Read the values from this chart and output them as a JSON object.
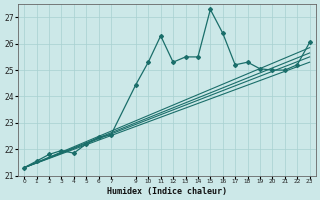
{
  "title": "",
  "xlabel": "Humidex (Indice chaleur)",
  "bg_color": "#cce8e8",
  "line_color": "#1a6e6a",
  "grid_color": "#a8d0d0",
  "xlim": [
    -0.5,
    23.5
  ],
  "ylim": [
    21.0,
    27.5
  ],
  "yticks": [
    21,
    22,
    23,
    24,
    25,
    26,
    27
  ],
  "xticks": [
    0,
    1,
    2,
    3,
    4,
    5,
    6,
    7,
    9,
    10,
    11,
    12,
    13,
    14,
    15,
    16,
    17,
    18,
    19,
    20,
    21,
    22,
    23
  ],
  "line_main": {
    "x": [
      0,
      1,
      2,
      3,
      4,
      5,
      6,
      7,
      9,
      10,
      11,
      12,
      13,
      14,
      15,
      16,
      17,
      18,
      19,
      20,
      21,
      22,
      23
    ],
    "y": [
      21.3,
      21.55,
      21.8,
      21.95,
      21.85,
      22.2,
      22.45,
      22.55,
      24.45,
      25.3,
      26.3,
      25.3,
      25.5,
      25.5,
      27.3,
      26.4,
      25.2,
      25.3,
      25.05,
      25.0,
      25.0,
      25.2,
      26.05
    ]
  },
  "line2": {
    "x": [
      0,
      23
    ],
    "y": [
      21.3,
      25.3
    ]
  },
  "line3": {
    "x": [
      0,
      23
    ],
    "y": [
      21.3,
      25.5
    ]
  },
  "line4": {
    "x": [
      0,
      23
    ],
    "y": [
      21.3,
      25.65
    ]
  },
  "line5": {
    "x": [
      0,
      23
    ],
    "y": [
      21.3,
      25.85
    ]
  }
}
